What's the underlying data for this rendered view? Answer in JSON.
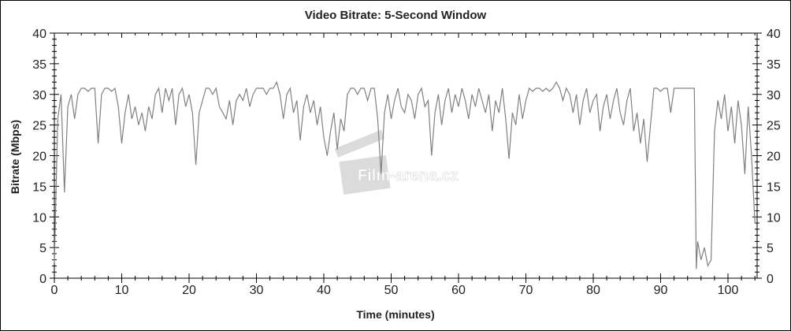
{
  "chart_data": {
    "type": "line",
    "title": "Video Bitrate: 5-Second Window",
    "xlabel": "Time (minutes)",
    "ylabel": "Bitrate (Mbps)",
    "xlim": [
      0,
      104.3
    ],
    "ylim": [
      0,
      40
    ],
    "x_ticks": [
      0,
      10,
      20,
      30,
      40,
      50,
      60,
      70,
      80,
      90,
      100
    ],
    "y_ticks": [
      0,
      5,
      10,
      15,
      20,
      25,
      30,
      35,
      40
    ],
    "y_axis_right_mirror": true,
    "grid": false,
    "legend": "none",
    "series_color": "#808080",
    "watermark": "Film-arena.cz",
    "series": [
      {
        "points": [
          [
            0,
            2.5
          ],
          [
            0.5,
            26
          ],
          [
            1,
            30
          ],
          [
            1.5,
            14
          ],
          [
            2,
            28
          ],
          [
            2.5,
            30
          ],
          [
            3,
            26
          ],
          [
            3.5,
            30
          ],
          [
            4,
            31
          ],
          [
            4.5,
            31
          ],
          [
            5,
            30.5
          ],
          [
            5.5,
            31
          ],
          [
            6,
            31
          ],
          [
            6.5,
            22
          ],
          [
            7,
            30
          ],
          [
            7.5,
            31
          ],
          [
            8,
            31
          ],
          [
            8.5,
            30.5
          ],
          [
            9,
            31
          ],
          [
            9.5,
            28
          ],
          [
            10,
            22
          ],
          [
            10.5,
            27
          ],
          [
            11,
            30
          ],
          [
            11.5,
            26
          ],
          [
            12,
            28
          ],
          [
            12.5,
            25
          ],
          [
            13,
            27
          ],
          [
            13.5,
            24
          ],
          [
            14,
            28
          ],
          [
            14.5,
            26
          ],
          [
            15,
            30
          ],
          [
            15.5,
            31
          ],
          [
            16,
            27
          ],
          [
            16.5,
            31
          ],
          [
            17,
            29
          ],
          [
            17.5,
            31
          ],
          [
            18,
            25
          ],
          [
            18.5,
            30
          ],
          [
            19,
            31
          ],
          [
            19.5,
            28
          ],
          [
            20,
            30
          ],
          [
            20.5,
            27
          ],
          [
            21,
            18.5
          ],
          [
            21.5,
            27
          ],
          [
            22,
            29
          ],
          [
            22.5,
            31
          ],
          [
            23,
            31
          ],
          [
            23.5,
            30
          ],
          [
            24,
            31
          ],
          [
            24.5,
            28
          ],
          [
            25,
            27
          ],
          [
            25.5,
            26
          ],
          [
            26,
            29
          ],
          [
            26.5,
            25
          ],
          [
            27,
            29
          ],
          [
            27.5,
            30
          ],
          [
            28,
            29
          ],
          [
            28.5,
            31
          ],
          [
            29,
            28
          ],
          [
            29.5,
            30
          ],
          [
            30,
            31
          ],
          [
            30.5,
            31
          ],
          [
            31,
            31
          ],
          [
            31.5,
            30
          ],
          [
            32,
            31
          ],
          [
            32.5,
            31
          ],
          [
            33,
            32
          ],
          [
            33.5,
            30
          ],
          [
            34,
            26
          ],
          [
            34.5,
            30
          ],
          [
            35,
            31
          ],
          [
            35.5,
            27
          ],
          [
            36,
            29
          ],
          [
            36.5,
            22.5
          ],
          [
            37,
            28
          ],
          [
            37.5,
            30
          ],
          [
            38,
            27
          ],
          [
            38.5,
            29
          ],
          [
            39,
            25
          ],
          [
            39.5,
            28
          ],
          [
            40,
            23
          ],
          [
            40.5,
            20
          ],
          [
            41,
            24
          ],
          [
            41.5,
            27
          ],
          [
            42,
            21
          ],
          [
            42.5,
            26
          ],
          [
            43,
            24
          ],
          [
            43.5,
            30
          ],
          [
            44,
            31
          ],
          [
            44.5,
            31
          ],
          [
            45,
            30
          ],
          [
            45.5,
            31
          ],
          [
            46,
            31
          ],
          [
            46.5,
            29
          ],
          [
            47,
            31
          ],
          [
            47.5,
            31
          ],
          [
            48,
            26
          ],
          [
            48.5,
            17
          ],
          [
            49,
            27
          ],
          [
            49.5,
            30
          ],
          [
            50,
            26
          ],
          [
            50.5,
            29
          ],
          [
            51,
            31
          ],
          [
            51.5,
            28
          ],
          [
            52,
            27
          ],
          [
            52.5,
            30
          ],
          [
            53,
            29
          ],
          [
            53.5,
            26
          ],
          [
            54,
            30
          ],
          [
            54.5,
            31
          ],
          [
            55,
            28
          ],
          [
            55.5,
            29
          ],
          [
            56,
            20
          ],
          [
            56.5,
            27
          ],
          [
            57,
            30
          ],
          [
            57.5,
            25
          ],
          [
            58,
            29
          ],
          [
            58.5,
            31
          ],
          [
            59,
            27
          ],
          [
            59.5,
            30
          ],
          [
            60,
            28
          ],
          [
            60.5,
            31
          ],
          [
            61,
            29
          ],
          [
            61.5,
            26
          ],
          [
            62,
            30
          ],
          [
            62.5,
            28
          ],
          [
            63,
            31
          ],
          [
            63.5,
            29
          ],
          [
            64,
            27
          ],
          [
            64.5,
            30
          ],
          [
            65,
            24
          ],
          [
            65.5,
            29
          ],
          [
            66,
            27
          ],
          [
            66.5,
            31
          ],
          [
            67,
            26
          ],
          [
            67.5,
            19.5
          ],
          [
            68,
            27
          ],
          [
            68.5,
            25
          ],
          [
            69,
            30
          ],
          [
            69.5,
            26
          ],
          [
            70,
            29
          ],
          [
            70.5,
            31
          ],
          [
            71,
            30.5
          ],
          [
            71.5,
            31
          ],
          [
            72,
            31
          ],
          [
            72.5,
            30.5
          ],
          [
            73,
            31
          ],
          [
            73.5,
            30.5
          ],
          [
            74,
            31
          ],
          [
            74.5,
            32
          ],
          [
            75,
            31
          ],
          [
            75.5,
            29
          ],
          [
            76,
            31
          ],
          [
            76.5,
            30
          ],
          [
            77,
            27
          ],
          [
            77.5,
            30
          ],
          [
            78,
            25
          ],
          [
            78.5,
            29
          ],
          [
            79,
            31
          ],
          [
            79.5,
            27
          ],
          [
            80,
            29
          ],
          [
            80.5,
            30
          ],
          [
            81,
            24
          ],
          [
            81.5,
            28
          ],
          [
            82,
            30
          ],
          [
            82.5,
            26
          ],
          [
            83,
            29
          ],
          [
            83.5,
            31
          ],
          [
            84,
            27
          ],
          [
            84.5,
            25
          ],
          [
            85,
            29
          ],
          [
            85.5,
            31
          ],
          [
            86,
            24
          ],
          [
            86.5,
            27
          ],
          [
            87,
            22
          ],
          [
            87.5,
            26
          ],
          [
            88,
            19
          ],
          [
            88.5,
            25
          ],
          [
            89,
            31
          ],
          [
            89.5,
            31
          ],
          [
            90,
            30.5
          ],
          [
            90.5,
            31
          ],
          [
            91,
            31
          ],
          [
            91.5,
            27
          ],
          [
            92,
            31
          ],
          [
            92.5,
            31
          ],
          [
            93,
            31
          ],
          [
            93.5,
            31
          ],
          [
            94,
            31
          ],
          [
            94.5,
            31
          ],
          [
            95,
            31
          ],
          [
            95.3,
            1.5
          ],
          [
            95.5,
            6
          ],
          [
            96,
            3
          ],
          [
            96.5,
            5
          ],
          [
            97,
            2
          ],
          [
            97.5,
            3
          ],
          [
            98,
            24
          ],
          [
            98.5,
            29
          ],
          [
            99,
            26
          ],
          [
            99.5,
            30
          ],
          [
            100,
            24
          ],
          [
            100.5,
            28
          ],
          [
            101,
            22
          ],
          [
            101.5,
            29
          ],
          [
            102,
            25
          ],
          [
            102.5,
            17
          ],
          [
            103,
            28
          ],
          [
            103.5,
            20
          ],
          [
            104,
            9
          ]
        ]
      }
    ]
  }
}
